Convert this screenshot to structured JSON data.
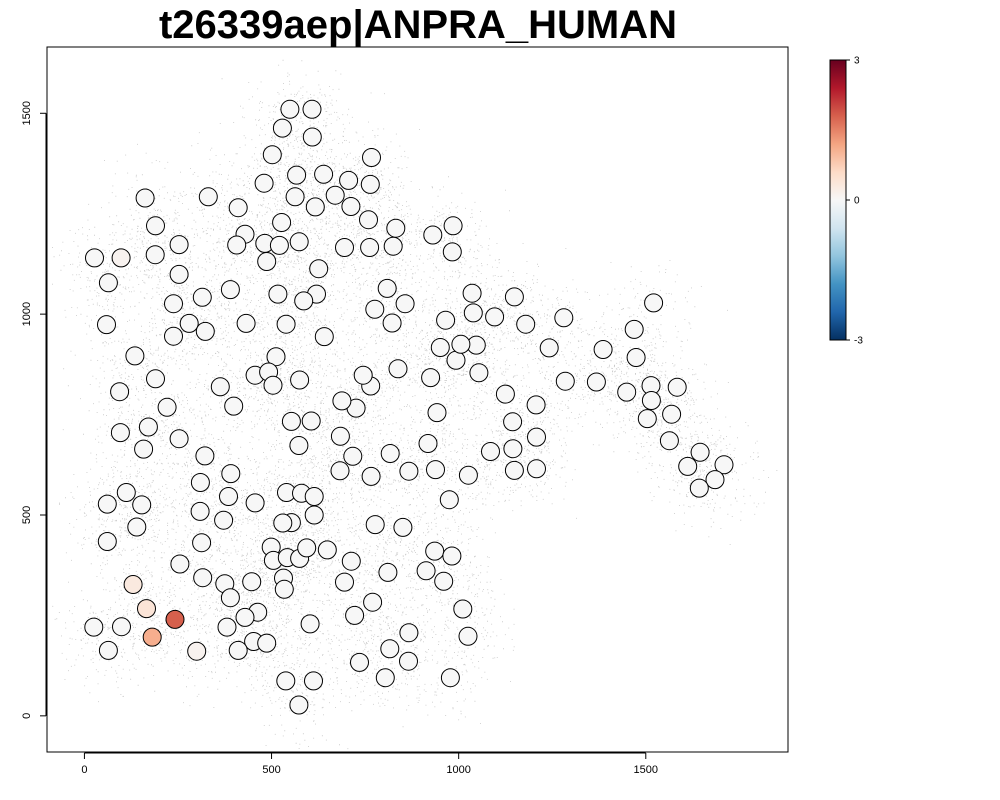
{
  "chart_data": {
    "type": "scatter",
    "title": "t26339aep|ANPRA_HUMAN",
    "xlabel": "",
    "ylabel": "",
    "xlim": [
      -100,
      1880
    ],
    "ylim": [
      -90,
      1665
    ],
    "x_ticks": [
      0,
      500,
      1000,
      1500
    ],
    "y_ticks": [
      0,
      500,
      1000,
      1500
    ],
    "colorbar": {
      "min": -3,
      "max": 3,
      "ticks": [
        3,
        0,
        -3
      ],
      "colors": [
        "#053061",
        "#2166ac",
        "#4393c3",
        "#92c5de",
        "#d1e5f0",
        "#f7f7f7",
        "#fddbc7",
        "#f4a582",
        "#d6604d",
        "#b2182b",
        "#67001f"
      ]
    },
    "background_color": "#c8c8c8",
    "spots": [
      [
        27,
        1140,
        0
      ],
      [
        98,
        1140,
        0.1
      ],
      [
        64,
        1078,
        0
      ],
      [
        59,
        974,
        0
      ],
      [
        162,
        1289,
        0
      ],
      [
        190,
        1220,
        0
      ],
      [
        189,
        1148,
        0
      ],
      [
        253,
        1173,
        0
      ],
      [
        253,
        1099,
        0
      ],
      [
        238,
        1026,
        0
      ],
      [
        238,
        945,
        0
      ],
      [
        280,
        977,
        0
      ],
      [
        323,
        957,
        0
      ],
      [
        315,
        1042,
        0
      ],
      [
        331,
        1292,
        0
      ],
      [
        411,
        1265,
        0
      ],
      [
        429,
        1199,
        0
      ],
      [
        407,
        1172,
        0
      ],
      [
        390,
        1061,
        0
      ],
      [
        432,
        977,
        0
      ],
      [
        480,
        1326,
        0
      ],
      [
        502,
        1397,
        0
      ],
      [
        529,
        1463,
        0
      ],
      [
        549,
        1510,
        0
      ],
      [
        608,
        1510,
        0
      ],
      [
        609,
        1441,
        0
      ],
      [
        567,
        1346,
        0
      ],
      [
        563,
        1292,
        0
      ],
      [
        527,
        1228,
        0
      ],
      [
        482,
        1176,
        0
      ],
      [
        487,
        1131,
        0
      ],
      [
        521,
        1171,
        0
      ],
      [
        574,
        1180,
        0
      ],
      [
        617,
        1267,
        0
      ],
      [
        639,
        1348,
        0
      ],
      [
        670,
        1296,
        0
      ],
      [
        712,
        1268,
        0
      ],
      [
        706,
        1333,
        0
      ],
      [
        767,
        1390,
        0
      ],
      [
        764,
        1323,
        0
      ],
      [
        759,
        1235,
        0
      ],
      [
        762,
        1166,
        0
      ],
      [
        825,
        1169,
        0
      ],
      [
        832,
        1214,
        0
      ],
      [
        931,
        1197,
        0
      ],
      [
        985,
        1220,
        0
      ],
      [
        983,
        1155,
        0
      ],
      [
        695,
        1166,
        0
      ],
      [
        626,
        1113,
        0
      ],
      [
        517,
        1050,
        0
      ],
      [
        620,
        1050,
        0
      ],
      [
        586,
        1033,
        0
      ],
      [
        539,
        975,
        0
      ],
      [
        641,
        944,
        0
      ],
      [
        809,
        1064,
        0
      ],
      [
        857,
        1026,
        0
      ],
      [
        776,
        1012,
        0
      ],
      [
        822,
        978,
        0
      ],
      [
        1036,
        1052,
        0
      ],
      [
        1039,
        1003,
        0
      ],
      [
        1096,
        993,
        0
      ],
      [
        1149,
        1043,
        0
      ],
      [
        1179,
        975,
        0
      ],
      [
        1281,
        991,
        0
      ],
      [
        1242,
        916,
        0
      ],
      [
        1386,
        912,
        0
      ],
      [
        1469,
        962,
        0
      ],
      [
        1521,
        1028,
        0
      ],
      [
        1474,
        892,
        0
      ],
      [
        1368,
        831,
        0
      ],
      [
        1285,
        833,
        0
      ],
      [
        1449,
        806,
        0
      ],
      [
        1514,
        822,
        0
      ],
      [
        1584,
        818,
        0
      ],
      [
        1515,
        785,
        0
      ],
      [
        1504,
        740,
        0
      ],
      [
        1569,
        751,
        0
      ],
      [
        1563,
        685,
        0
      ],
      [
        1645,
        656,
        0
      ],
      [
        1612,
        621,
        0
      ],
      [
        1709,
        625,
        0
      ],
      [
        1685,
        588,
        0
      ],
      [
        1643,
        567,
        0
      ],
      [
        1207,
        774,
        0
      ],
      [
        1125,
        801,
        0
      ],
      [
        1144,
        732,
        0
      ],
      [
        1208,
        694,
        0
      ],
      [
        1145,
        665,
        0
      ],
      [
        1085,
        658,
        0
      ],
      [
        1149,
        611,
        0
      ],
      [
        1208,
        615,
        0
      ],
      [
        1047,
        923,
        0
      ],
      [
        1054,
        854,
        0
      ],
      [
        993,
        885,
        0
      ],
      [
        1006,
        925,
        0
      ],
      [
        951,
        917,
        0
      ],
      [
        965,
        985,
        0
      ],
      [
        925,
        842,
        0
      ],
      [
        942,
        755,
        0
      ],
      [
        838,
        864,
        0
      ],
      [
        765,
        821,
        0
      ],
      [
        745,
        848,
        0
      ],
      [
        726,
        766,
        0
      ],
      [
        688,
        784,
        0
      ],
      [
        512,
        894,
        0
      ],
      [
        456,
        848,
        0
      ],
      [
        492,
        856,
        0
      ],
      [
        504,
        823,
        0
      ],
      [
        575,
        836,
        0
      ],
      [
        553,
        733,
        0
      ],
      [
        606,
        734,
        0
      ],
      [
        573,
        673,
        0
      ],
      [
        399,
        771,
        0
      ],
      [
        363,
        819,
        0
      ],
      [
        221,
        768,
        0
      ],
      [
        190,
        839,
        0
      ],
      [
        135,
        896,
        0
      ],
      [
        94,
        807,
        0
      ],
      [
        96,
        705,
        0
      ],
      [
        171,
        719,
        0
      ],
      [
        158,
        664,
        0
      ],
      [
        253,
        690,
        0
      ],
      [
        322,
        647,
        0
      ],
      [
        391,
        603,
        0
      ],
      [
        310,
        581,
        0
      ],
      [
        385,
        546,
        0
      ],
      [
        456,
        530,
        0
      ],
      [
        309,
        509,
        0
      ],
      [
        372,
        487,
        0
      ],
      [
        540,
        556,
        0
      ],
      [
        580,
        554,
        0
      ],
      [
        614,
        546,
        0
      ],
      [
        614,
        500,
        0
      ],
      [
        553,
        481,
        0
      ],
      [
        530,
        480,
        0
      ],
      [
        499,
        420,
        0
      ],
      [
        505,
        387,
        0
      ],
      [
        542,
        394,
        0
      ],
      [
        575,
        392,
        0
      ],
      [
        594,
        418,
        0
      ],
      [
        649,
        413,
        0
      ],
      [
        713,
        385,
        0
      ],
      [
        695,
        333,
        0
      ],
      [
        777,
        476,
        0
      ],
      [
        851,
        469,
        0
      ],
      [
        766,
        596,
        0
      ],
      [
        717,
        646,
        0
      ],
      [
        683,
        610,
        0
      ],
      [
        684,
        696,
        0
      ],
      [
        817,
        653,
        0
      ],
      [
        867,
        609,
        0
      ],
      [
        918,
        678,
        0
      ],
      [
        938,
        613,
        0
      ],
      [
        1026,
        599,
        0
      ],
      [
        975,
        538,
        0
      ],
      [
        936,
        410,
        0
      ],
      [
        982,
        398,
        0
      ],
      [
        913,
        361,
        0
      ],
      [
        960,
        335,
        0
      ],
      [
        811,
        357,
        0
      ],
      [
        770,
        283,
        0
      ],
      [
        722,
        250,
        0
      ],
      [
        1011,
        266,
        0
      ],
      [
        1025,
        198,
        0
      ],
      [
        867,
        207,
        0
      ],
      [
        816,
        167,
        0
      ],
      [
        866,
        136,
        0
      ],
      [
        735,
        133,
        0
      ],
      [
        804,
        95,
        0
      ],
      [
        978,
        95,
        0
      ],
      [
        61,
        527,
        0
      ],
      [
        112,
        556,
        0
      ],
      [
        153,
        525,
        0
      ],
      [
        140,
        470,
        0
      ],
      [
        61,
        434,
        0
      ],
      [
        255,
        378,
        0
      ],
      [
        313,
        431,
        0
      ],
      [
        316,
        344,
        0
      ],
      [
        375,
        329,
        0
      ],
      [
        390,
        294,
        0
      ],
      [
        447,
        334,
        0
      ],
      [
        532,
        343,
        0
      ],
      [
        534,
        315,
        0
      ],
      [
        463,
        258,
        0
      ],
      [
        429,
        245,
        0
      ],
      [
        381,
        221,
        0
      ],
      [
        452,
        185,
        0
      ],
      [
        487,
        181,
        0
      ],
      [
        411,
        163,
        0
      ],
      [
        300,
        161,
        0.1
      ],
      [
        603,
        229,
        0
      ],
      [
        538,
        87,
        0
      ],
      [
        612,
        87,
        0
      ],
      [
        573,
        27,
        0
      ],
      [
        130,
        327,
        0.3
      ],
      [
        166,
        267,
        0.4
      ],
      [
        242,
        240,
        1.8
      ],
      [
        181,
        196,
        1.1
      ],
      [
        25,
        221,
        0
      ],
      [
        99,
        222,
        0
      ],
      [
        64,
        163,
        0
      ]
    ]
  }
}
